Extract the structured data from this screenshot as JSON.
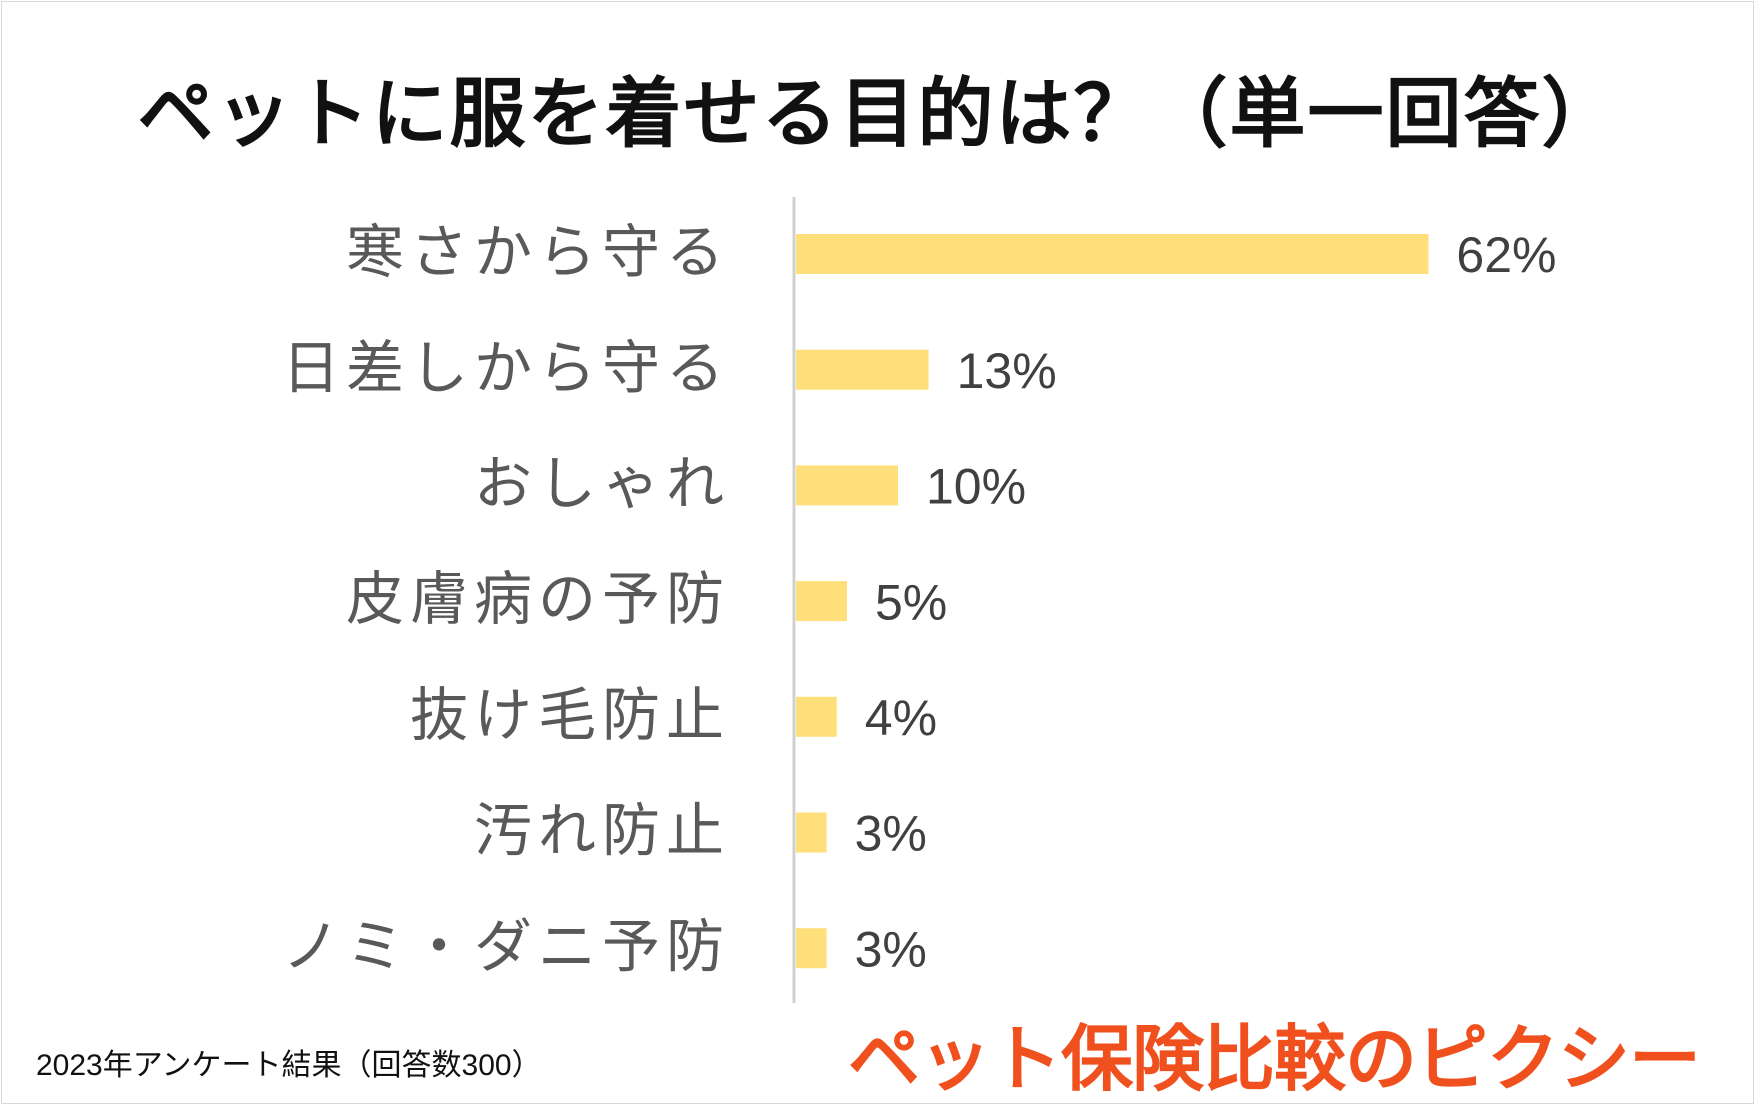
{
  "chart_data": {
    "type": "bar",
    "orientation": "horizontal",
    "title": "ペットに服を着せる目的は？（単一回答）",
    "categories": [
      "寒さから守る",
      "日差しから守る",
      "おしゃれ",
      "皮膚病の予防",
      "抜け毛防止",
      "汚れ防止",
      "ノミ・ダニ予防"
    ],
    "values": [
      62,
      13,
      10,
      5,
      4,
      3,
      3
    ],
    "value_labels": [
      "62%",
      "13%",
      "10%",
      "5%",
      "4%",
      "3%",
      "3%"
    ],
    "unit": "%",
    "xlim": [
      0,
      100
    ],
    "grid": false,
    "bar_color": "#ffdf7a",
    "axis_color": "#d0d0d0"
  },
  "footnote": "2023年アンケート結果（回答数300）",
  "brand": "ペット保険比較のピクシー",
  "colors": {
    "brand": "#f0501e",
    "title": "#111111",
    "label": "#595959"
  }
}
